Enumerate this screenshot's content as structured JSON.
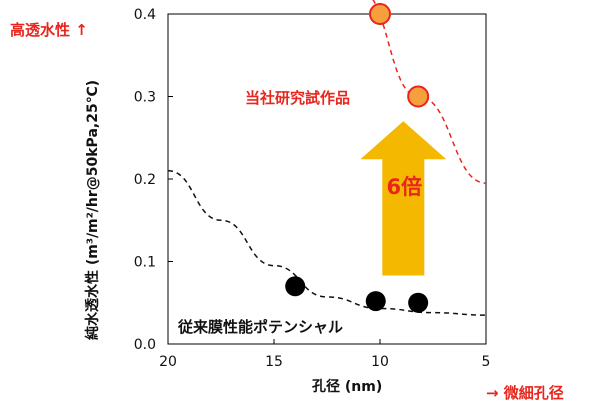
{
  "chart_data": {
    "type": "scatter",
    "xlabel": "孔径 (nm)",
    "ylabel": "純水透水性 (m³/m²/hr@50kPa,25℃)",
    "xlim": [
      20,
      5
    ],
    "ylim": [
      0.0,
      0.4
    ],
    "x_ticks": [
      "20",
      "15",
      "10",
      "5"
    ],
    "y_ticks": [
      "0.0",
      "0.1",
      "0.2",
      "0.3",
      "0.4"
    ],
    "x_reversed": true,
    "grid": false,
    "series": [
      {
        "name": "当社研究試作品",
        "color": "#e8261e",
        "marker_fill": "#f5a03c",
        "points": [
          {
            "x": 10.0,
            "y": 0.4
          },
          {
            "x": 8.2,
            "y": 0.3
          }
        ],
        "trend": [
          {
            "x": 11.0,
            "y": 0.43
          },
          {
            "x": 8.2,
            "y": 0.3
          },
          {
            "x": 5.0,
            "y": 0.195
          }
        ]
      },
      {
        "name": "従来膜性能ポテンシャル",
        "color": "#111111",
        "marker_fill": "#000000",
        "points": [
          {
            "x": 14.0,
            "y": 0.07
          },
          {
            "x": 10.2,
            "y": 0.052
          },
          {
            "x": 8.2,
            "y": 0.05
          }
        ],
        "trend": [
          {
            "x": 20.0,
            "y": 0.21
          },
          {
            "x": 17.5,
            "y": 0.15
          },
          {
            "x": 15.0,
            "y": 0.095
          },
          {
            "x": 12.5,
            "y": 0.057
          },
          {
            "x": 10.0,
            "y": 0.043
          },
          {
            "x": 7.5,
            "y": 0.038
          },
          {
            "x": 5.0,
            "y": 0.035
          }
        ]
      }
    ],
    "annotation": {
      "text": "6倍",
      "arrow_color": "#f5b800",
      "text_color": "#e8261e",
      "arrow_x": 8.9,
      "arrow_from_y": 0.083,
      "arrow_to_y": 0.27
    }
  },
  "corner_labels": {
    "top_left": "高透水性 ↑",
    "bottom_right": "→ 微細孔径"
  }
}
